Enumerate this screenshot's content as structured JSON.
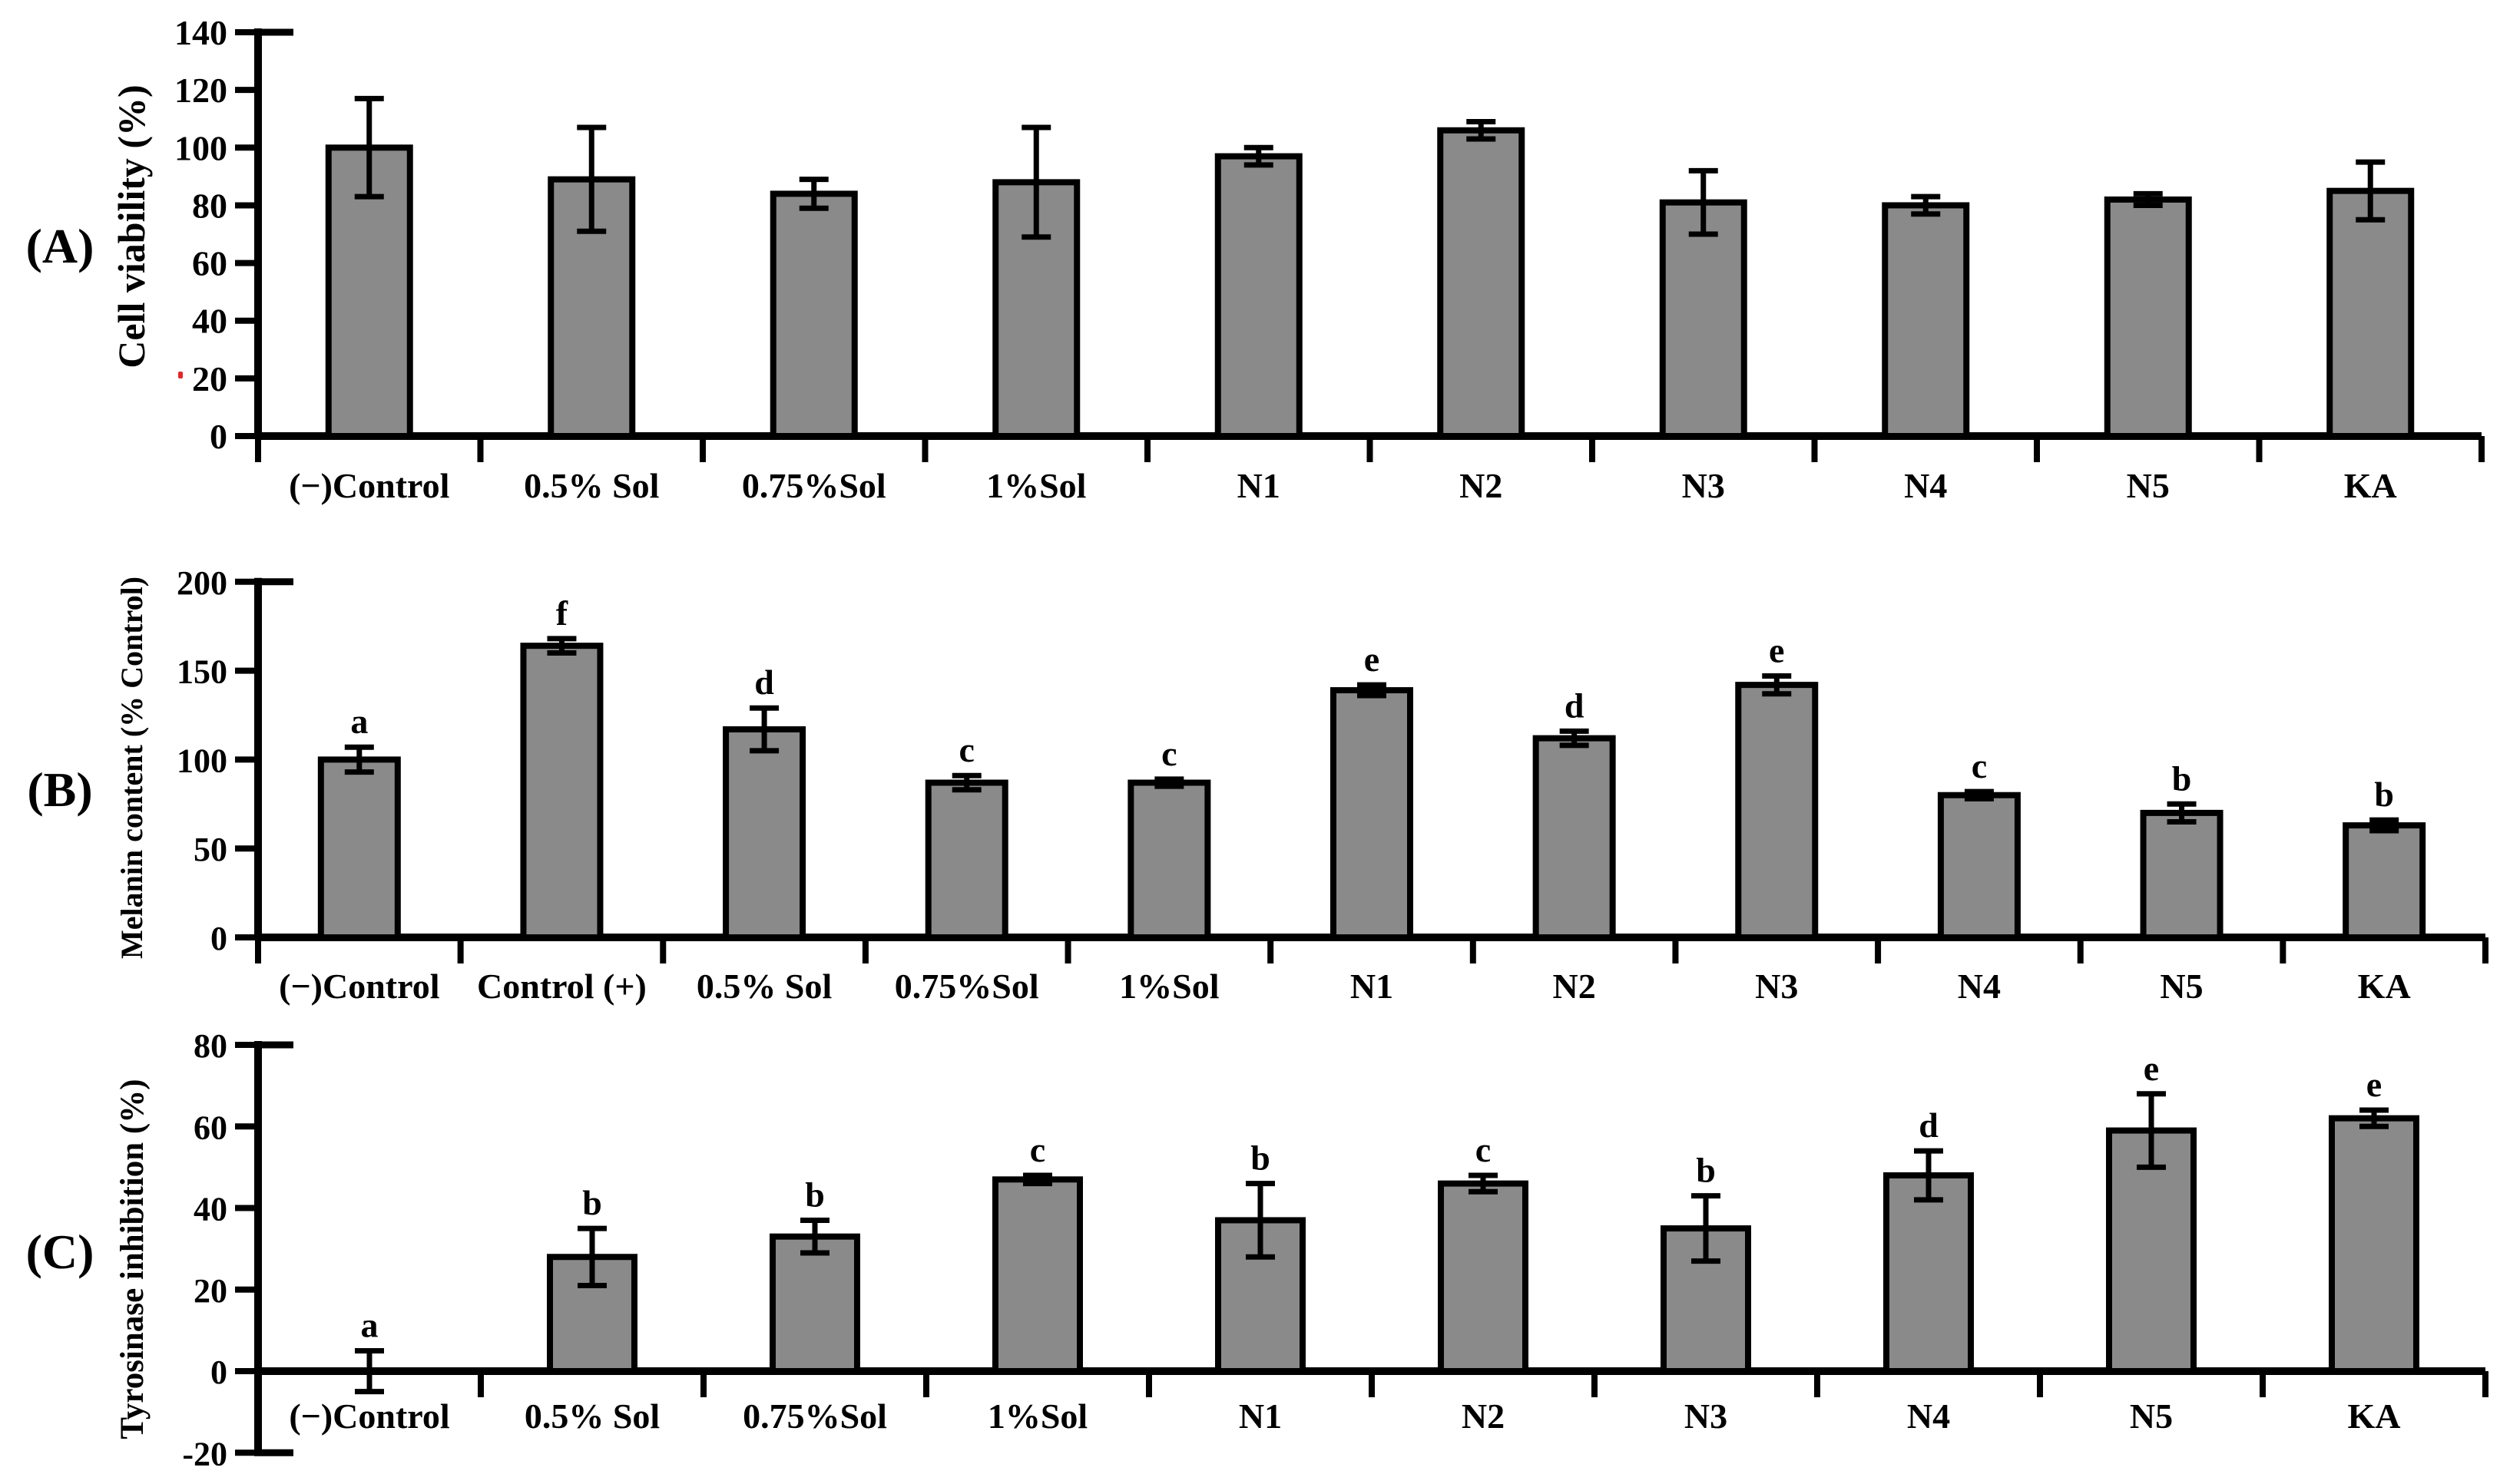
{
  "styles": {
    "bar_fill": "#8a8a8a",
    "bar_stroke": "#000000",
    "axis_color": "#000000",
    "text_color": "#000000",
    "background": "#ffffff",
    "artifact_red": "#e00000"
  },
  "chart_data": [
    {
      "panel_label": "(A)",
      "type": "bar",
      "title": "",
      "xlabel": "",
      "ylabel": "Cell viability (%)",
      "ylim": [
        0,
        140
      ],
      "yticks": [
        0,
        20,
        40,
        60,
        80,
        100,
        120,
        140
      ],
      "grid": false,
      "legend": null,
      "categories": [
        "(−)Control",
        "0.5% Sol",
        "0.75%Sol",
        "1%Sol",
        "N1",
        "N2",
        "N3",
        "N4",
        "N5",
        "KA"
      ],
      "values": [
        100,
        89,
        84,
        88,
        97,
        106,
        81,
        80,
        82,
        85
      ],
      "errors": [
        17,
        18,
        5,
        19,
        3,
        3,
        11,
        3,
        2,
        10
      ],
      "letters": null
    },
    {
      "panel_label": "(B)",
      "type": "bar",
      "title": "",
      "xlabel": "",
      "ylabel": "Melanin content (% Control)",
      "ylim": [
        0,
        200
      ],
      "yticks": [
        0,
        50,
        100,
        150,
        200
      ],
      "grid": false,
      "legend": null,
      "categories": [
        "(−)Control",
        "Control (+)",
        "0.5% Sol",
        "0.75%Sol",
        "1%Sol",
        "N1",
        "N2",
        "N3",
        "N4",
        "N5",
        "KA"
      ],
      "values": [
        100,
        164,
        117,
        87,
        87,
        139,
        112,
        142,
        80,
        70,
        63
      ],
      "errors": [
        7,
        4,
        12,
        4,
        2,
        3,
        4,
        5,
        2,
        5,
        3
      ],
      "letters": [
        "a",
        "f",
        "d",
        "c",
        "c",
        "e",
        "d",
        "e",
        "c",
        "b",
        "b"
      ]
    },
    {
      "panel_label": "(C)",
      "type": "bar",
      "title": "",
      "xlabel": "",
      "ylabel": "Tyrosinase inhibition (%)",
      "ylim": [
        -20,
        80
      ],
      "yticks": [
        -20,
        0,
        20,
        40,
        60,
        80
      ],
      "grid": false,
      "legend": null,
      "categories": [
        "(−)Control",
        "0.5% Sol",
        "0.75%Sol",
        "1%Sol",
        "N1",
        "N2",
        "N3",
        "N4",
        "N5",
        "KA"
      ],
      "values": [
        0,
        28,
        33,
        47,
        37,
        46,
        35,
        48,
        59,
        62
      ],
      "errors": [
        5,
        7,
        4,
        1,
        9,
        2,
        8,
        6,
        9,
        2
      ],
      "letters": [
        "a",
        "b",
        "b",
        "c",
        "b",
        "c",
        "b",
        "d",
        "e",
        "e"
      ]
    }
  ]
}
